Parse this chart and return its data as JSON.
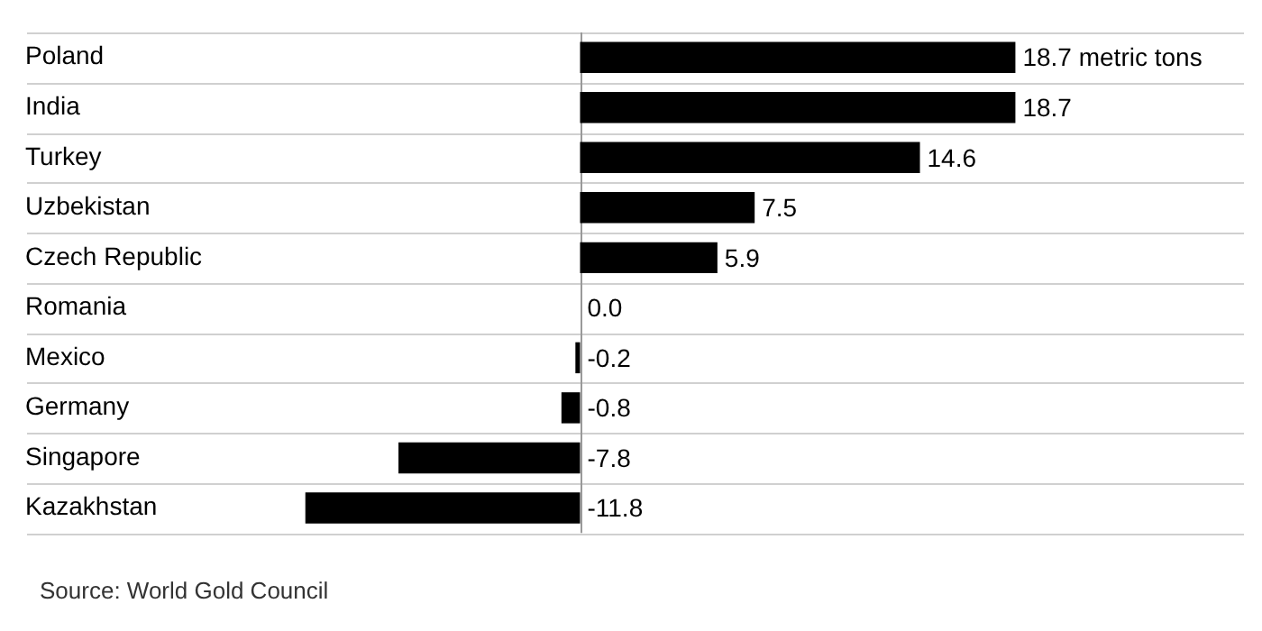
{
  "chart_data": {
    "type": "bar",
    "orientation": "horizontal",
    "categories": [
      "Poland",
      "India",
      "Turkey",
      "Uzbekistan",
      "Czech Republic",
      "Romania",
      "Mexico",
      "Germany",
      "Singapore",
      "Kazakhstan"
    ],
    "values": [
      18.7,
      18.7,
      14.6,
      7.5,
      5.9,
      0.0,
      -0.2,
      -0.8,
      -7.8,
      -11.8
    ],
    "value_labels": [
      "18.7 metric tons",
      "18.7",
      "14.6",
      "7.5",
      "5.9",
      "0.0",
      "-0.2",
      "-0.8",
      "-7.8",
      "-11.8"
    ],
    "color": "#000000",
    "grid": "y",
    "annotations": [
      "Source: World Gold Council"
    ]
  }
}
